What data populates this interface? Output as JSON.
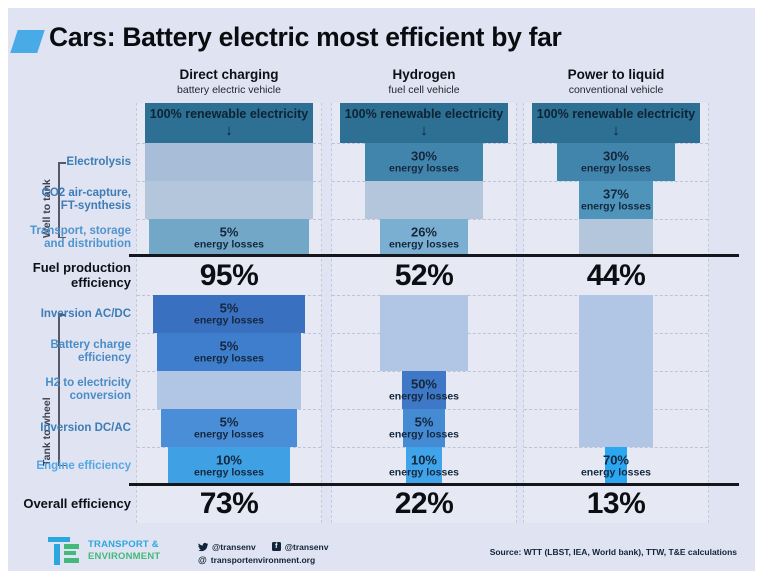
{
  "title": "Cars: Battery electric most efficient by far",
  "accent_color": "#49aae8",
  "chart_data": {
    "type": "funnel-comparison",
    "unit": "%",
    "energy_losses_label": "energy losses",
    "source_banner": {
      "label": "100% renewable electricity",
      "arrow": "↓",
      "color": "#2d7094"
    },
    "row_groups": [
      {
        "name": "Well to tank",
        "rows": [
          "Electrolysis",
          "CO2 air-capture, FT-synthesis",
          "Transport, storage and distribution"
        ]
      },
      {
        "name": "Tank to wheel",
        "rows": [
          "Inversion AC/DC",
          "Battery charge efficiency",
          "H2 to electricity conversion",
          "Inversion DC/AC",
          "Engine efficiency"
        ]
      }
    ],
    "row_labels": [
      {
        "lines": [
          "Electrolysis"
        ],
        "color": "#3d7cb7"
      },
      {
        "lines": [
          "CO2 air-capture,",
          "FT-synthesis"
        ],
        "color": "#3d7cb7"
      },
      {
        "lines": [
          "Transport, storage",
          "and distribution"
        ],
        "color": "#4f94cd"
      },
      {
        "lines": [
          "Inversion AC/DC"
        ],
        "color": "#3d7cb7"
      },
      {
        "lines": [
          "Battery charge",
          "efficiency"
        ],
        "color": "#4a8cc8"
      },
      {
        "lines": [
          "H2 to electricity",
          "conversion"
        ],
        "color": "#4a8cc8"
      },
      {
        "lines": [
          "Inversion DC/AC"
        ],
        "color": "#3d7cb7"
      },
      {
        "lines": [
          "Engine efficiency"
        ],
        "color": "#55a7e4"
      }
    ],
    "summary_rows": [
      {
        "label_lines": [
          "Fuel production",
          "efficiency"
        ],
        "values": [
          "95%",
          "52%",
          "44%"
        ]
      },
      {
        "label_lines": [
          "Overall efficiency"
        ],
        "values": [
          "73%",
          "22%",
          "13%"
        ]
      }
    ],
    "columns": [
      {
        "title": "Direct charging",
        "subtitle": "battery electric vehicle",
        "fuel_production_efficiency": 95,
        "overall_efficiency": 73,
        "segments": [
          {
            "row": "Electrolysis",
            "loss": null,
            "remaining": 100,
            "color": "#a8bdd7"
          },
          {
            "row": "CO2 air-capture, FT-synthesis",
            "loss": null,
            "remaining": 100,
            "color": "#b4c6db"
          },
          {
            "row": "Transport, storage and distribution",
            "loss": "5%",
            "remaining": 95,
            "color": "#72a7c8"
          },
          {
            "row": "Inversion AC/DC",
            "loss": "5%",
            "remaining": 90,
            "color": "#3a70c0"
          },
          {
            "row": "Battery charge efficiency",
            "loss": "5%",
            "remaining": 86,
            "color": "#3e7ecc"
          },
          {
            "row": "H2 to electricity conversion",
            "loss": null,
            "remaining": 86,
            "color": "#b1c6e5"
          },
          {
            "row": "Inversion DC/AC",
            "loss": "5%",
            "remaining": 81,
            "color": "#4a8ed8"
          },
          {
            "row": "Engine efficiency",
            "loss": "10%",
            "remaining": 73,
            "color": "#3fa0e4"
          }
        ]
      },
      {
        "title": "Hydrogen",
        "subtitle": "fuel cell vehicle",
        "fuel_production_efficiency": 52,
        "overall_efficiency": 22,
        "segments": [
          {
            "row": "Electrolysis",
            "loss": "30%",
            "remaining": 70,
            "color": "#4285ac"
          },
          {
            "row": "CO2 air-capture, FT-synthesis",
            "loss": null,
            "remaining": 70,
            "color": "#b4c6db"
          },
          {
            "row": "Transport, storage and distribution",
            "loss": "26%",
            "remaining": 52,
            "color": "#7aafd1"
          },
          {
            "row": "Inversion AC/DC",
            "loss": null,
            "remaining": 52,
            "color": "#b1c6e5"
          },
          {
            "row": "Battery charge efficiency",
            "loss": null,
            "remaining": 52,
            "color": "#b1c6e5"
          },
          {
            "row": "H2 to electricity conversion",
            "loss": "50%",
            "remaining": 26,
            "color": "#3f78c6"
          },
          {
            "row": "Inversion DC/AC",
            "loss": "5%",
            "remaining": 25,
            "color": "#448bd4"
          },
          {
            "row": "Engine efficiency",
            "loss": "10%",
            "remaining": 22,
            "color": "#3fa4e9"
          }
        ]
      },
      {
        "title": "Power to liquid",
        "subtitle": "conventional vehicle",
        "fuel_production_efficiency": 44,
        "overall_efficiency": 13,
        "segments": [
          {
            "row": "Electrolysis",
            "loss": "30%",
            "remaining": 70,
            "color": "#4285ac"
          },
          {
            "row": "CO2 air-capture, FT-synthesis",
            "loss": "37%",
            "remaining": 44,
            "color": "#4f94bb"
          },
          {
            "row": "Transport, storage and distribution",
            "loss": null,
            "remaining": 44,
            "color": "#b4c6db"
          },
          {
            "row": "Inversion AC/DC",
            "loss": null,
            "remaining": 44,
            "color": "#b1c6e5"
          },
          {
            "row": "Battery charge efficiency",
            "loss": null,
            "remaining": 44,
            "color": "#b1c6e5"
          },
          {
            "row": "H2 to electricity conversion",
            "loss": null,
            "remaining": 44,
            "color": "#b1c6e5"
          },
          {
            "row": "Inversion DC/AC",
            "loss": null,
            "remaining": 44,
            "color": "#b1c6e5"
          },
          {
            "row": "Engine efficiency",
            "loss": "70%",
            "remaining": 13,
            "color": "#2ba7f2"
          }
        ]
      }
    ]
  },
  "footer": {
    "logo_line1": "TRANSPORT &",
    "logo_line2": "ENVIRONMENT",
    "logo_color1": "#2ba7e0",
    "logo_color2": "#43b97c",
    "twitter_handle": "@transenv",
    "facebook_handle": "@transenv",
    "facebook_icon_letter": "f",
    "website_prefix": "@",
    "website": "transportenvironment.org",
    "source": "Source: WTT (LBST, IEA, World bank), TTW, T&E calculations"
  }
}
